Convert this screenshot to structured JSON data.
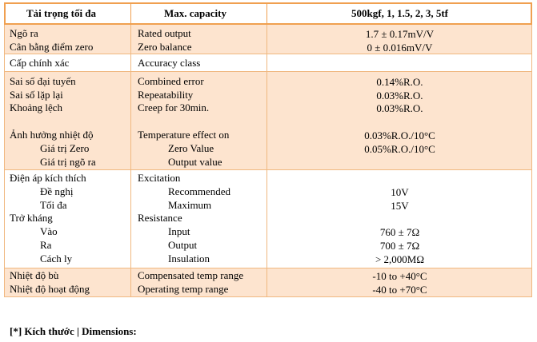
{
  "header": {
    "col1": "Tải trọng tối đa",
    "col2": "Max. capacity",
    "col3": "500kgf, 1, 1.5, 2, 3, 5tf"
  },
  "groups": [
    {
      "lines": [
        {
          "vi": "Ngõ ra",
          "en": "Rated output",
          "value": "1.7 ± 0.17mV/V"
        },
        {
          "vi": "Cân bằng điểm zero",
          "en": "Zero balance",
          "value": "0 ± 0.016mV/V"
        }
      ]
    },
    {
      "lines": [
        {
          "vi": "Cấp chính xác",
          "en": "Accuracy class"
        }
      ]
    },
    {
      "lines": [
        {
          "vi": "Sai số đại tuyến",
          "en": "Combined error",
          "value": "0.14%R.O."
        },
        {
          "vi": "Sai số lặp lại",
          "en": "Repeatability",
          "value": "0.03%R.O."
        },
        {
          "vi": "Khoảng lệch",
          "en": "Creep for 30min.",
          "value": "0.03%R.O."
        },
        {
          "vi": "Ảnh hưởng nhiệt độ",
          "en": "Temperature effect on",
          "value": "0.03%R.O./10°C"
        },
        {
          "vi": "Giá trị Zero",
          "en": "Zero Value",
          "value": "0.05%R.O./10°C"
        },
        {
          "vi": "Giá trị ngõ ra",
          "en": "Output value"
        }
      ]
    },
    {
      "lines": [
        {
          "vi": "Điện áp kích thích",
          "en": "Excitation"
        },
        {
          "vi": "Đề nghị",
          "en": "Recommended",
          "value": "10V"
        },
        {
          "vi": "Tối đa",
          "en": "Maximum",
          "value": "15V"
        },
        {
          "vi": "Trở kháng",
          "en": "Resistance"
        },
        {
          "vi": "Vào",
          "en": "Input",
          "value": "760 ± 7Ω"
        },
        {
          "vi": "Ra",
          "en": "Output",
          "value": "700 ± 7Ω"
        },
        {
          "vi": "Cách ly",
          "en": "Insulation",
          "value": "> 2,000MΩ"
        }
      ]
    },
    {
      "lines": [
        {
          "vi": "Nhiệt độ bù",
          "en": "Compensated temp range",
          "value": "-10 to +40°C"
        },
        {
          "vi": "Nhiệt độ hoạt động",
          "en": "Operating temp range",
          "value": "-40 to +70°C"
        }
      ]
    }
  ],
  "footer": "[*] Kích thước | Dimensions:"
}
